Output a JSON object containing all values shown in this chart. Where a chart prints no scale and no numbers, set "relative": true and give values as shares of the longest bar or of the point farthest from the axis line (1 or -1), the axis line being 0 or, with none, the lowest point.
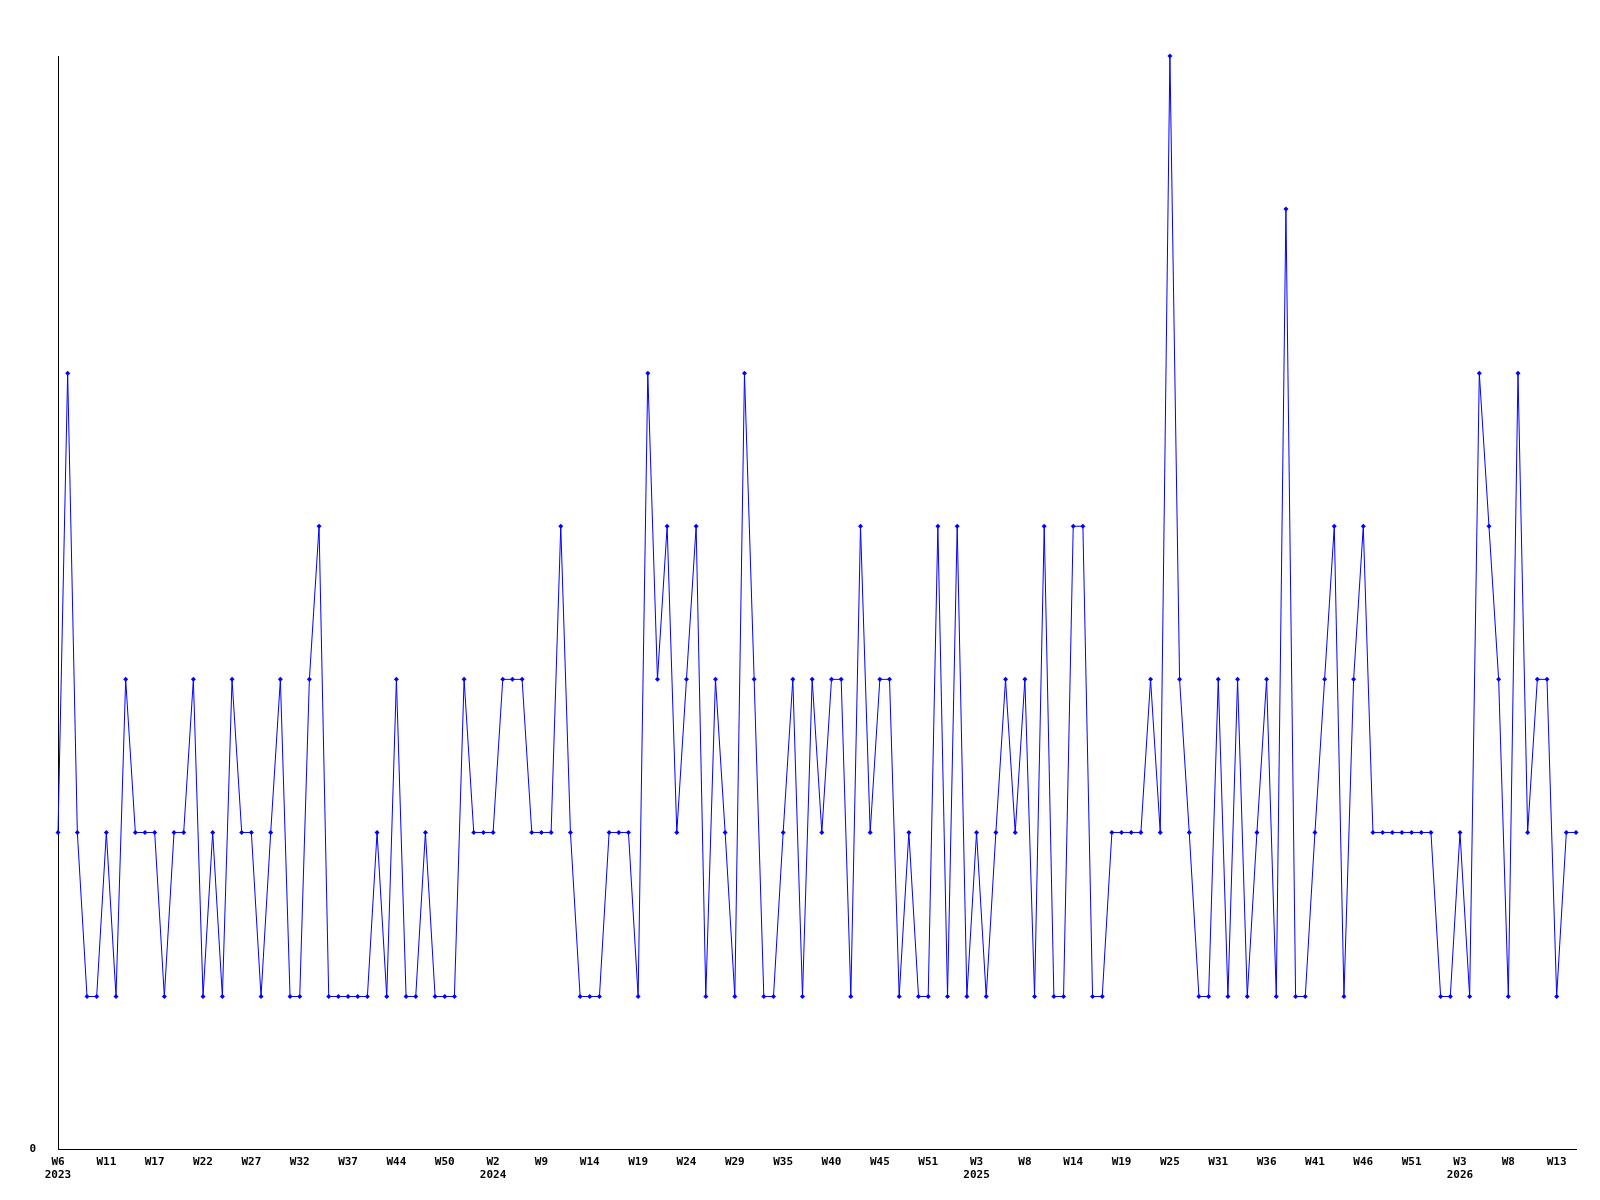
{
  "chart_data": {
    "type": "line",
    "relative": true,
    "annotations": [
      "0"
    ],
    "marker": "diamond",
    "grid": false,
    "legend": false,
    "categories": [
      "W6\n2023",
      null,
      null,
      null,
      null,
      "W11",
      null,
      null,
      null,
      null,
      "W17",
      null,
      null,
      null,
      null,
      "W22",
      null,
      null,
      null,
      null,
      "W27",
      null,
      null,
      null,
      null,
      "W32",
      null,
      null,
      null,
      null,
      "W37",
      null,
      null,
      null,
      null,
      "W44",
      null,
      null,
      null,
      null,
      "W50",
      null,
      null,
      null,
      null,
      "W2\n2024",
      null,
      null,
      null,
      null,
      "W9",
      null,
      null,
      null,
      null,
      "W14",
      null,
      null,
      null,
      null,
      "W19",
      null,
      null,
      null,
      null,
      "W24",
      null,
      null,
      null,
      null,
      "W29",
      null,
      null,
      null,
      null,
      "W35",
      null,
      null,
      null,
      null,
      "W40",
      null,
      null,
      null,
      null,
      "W45",
      null,
      null,
      null,
      null,
      "W51",
      null,
      null,
      null,
      null,
      "W3\n2025",
      null,
      null,
      null,
      null,
      "W8",
      null,
      null,
      null,
      null,
      "W14",
      null,
      null,
      null,
      null,
      "W19",
      null,
      null,
      null,
      null,
      "W25",
      null,
      null,
      null,
      null,
      "W31",
      null,
      null,
      null,
      null,
      "W36",
      null,
      null,
      null,
      null,
      "W41",
      null,
      null,
      null,
      null,
      "W46",
      null,
      null,
      null,
      null,
      "W51",
      null,
      null,
      null,
      null,
      "W3\n2026",
      null,
      null,
      null,
      null,
      "W8",
      null,
      null,
      null,
      null,
      "W13",
      null,
      null
    ],
    "series": [
      {
        "color": "#0000ff",
        "values": [
          0.29,
          0.71,
          0.29,
          0.14,
          0.14,
          0.29,
          0.14,
          0.43,
          0.29,
          0.29,
          0.29,
          0.14,
          0.29,
          0.29,
          0.43,
          0.14,
          0.29,
          0.14,
          0.43,
          0.29,
          0.29,
          0.14,
          0.29,
          0.43,
          0.14,
          0.14,
          0.43,
          0.57,
          0.14,
          0.14,
          0.14,
          0.14,
          0.14,
          0.29,
          0.14,
          0.43,
          0.14,
          0.14,
          0.29,
          0.14,
          0.14,
          0.14,
          0.43,
          0.29,
          0.29,
          0.29,
          0.43,
          0.43,
          0.43,
          0.29,
          0.29,
          0.29,
          0.57,
          0.29,
          0.14,
          0.14,
          0.14,
          0.29,
          0.29,
          0.29,
          0.14,
          0.71,
          0.43,
          0.57,
          0.29,
          0.43,
          0.57,
          0.14,
          0.43,
          0.29,
          0.14,
          0.71,
          0.43,
          0.14,
          0.14,
          0.29,
          0.43,
          0.14,
          0.43,
          0.29,
          0.43,
          0.43,
          0.14,
          0.57,
          0.29,
          0.43,
          0.43,
          0.14,
          0.29,
          0.14,
          0.14,
          0.57,
          0.14,
          0.57,
          0.14,
          0.29,
          0.14,
          0.29,
          0.43,
          0.29,
          0.43,
          0.14,
          0.57,
          0.14,
          0.14,
          0.57,
          0.57,
          0.14,
          0.14,
          0.29,
          0.29,
          0.29,
          0.29,
          0.43,
          0.29,
          1,
          0.43,
          0.29,
          0.14,
          0.14,
          0.43,
          0.14,
          0.43,
          0.14,
          0.29,
          0.43,
          0.14,
          0.86,
          0.14,
          0.14,
          0.29,
          0.43,
          0.57,
          0.14,
          0.43,
          0.57,
          0.29,
          0.29,
          0.29,
          0.29,
          0.29,
          0.29,
          0.29,
          0.14,
          0.14,
          0.29,
          0.14,
          0.71,
          0.57,
          0.43,
          0.14,
          0.71,
          0.29,
          0.43,
          0.43,
          0.14,
          0.29,
          0.29
        ]
      }
    ]
  }
}
